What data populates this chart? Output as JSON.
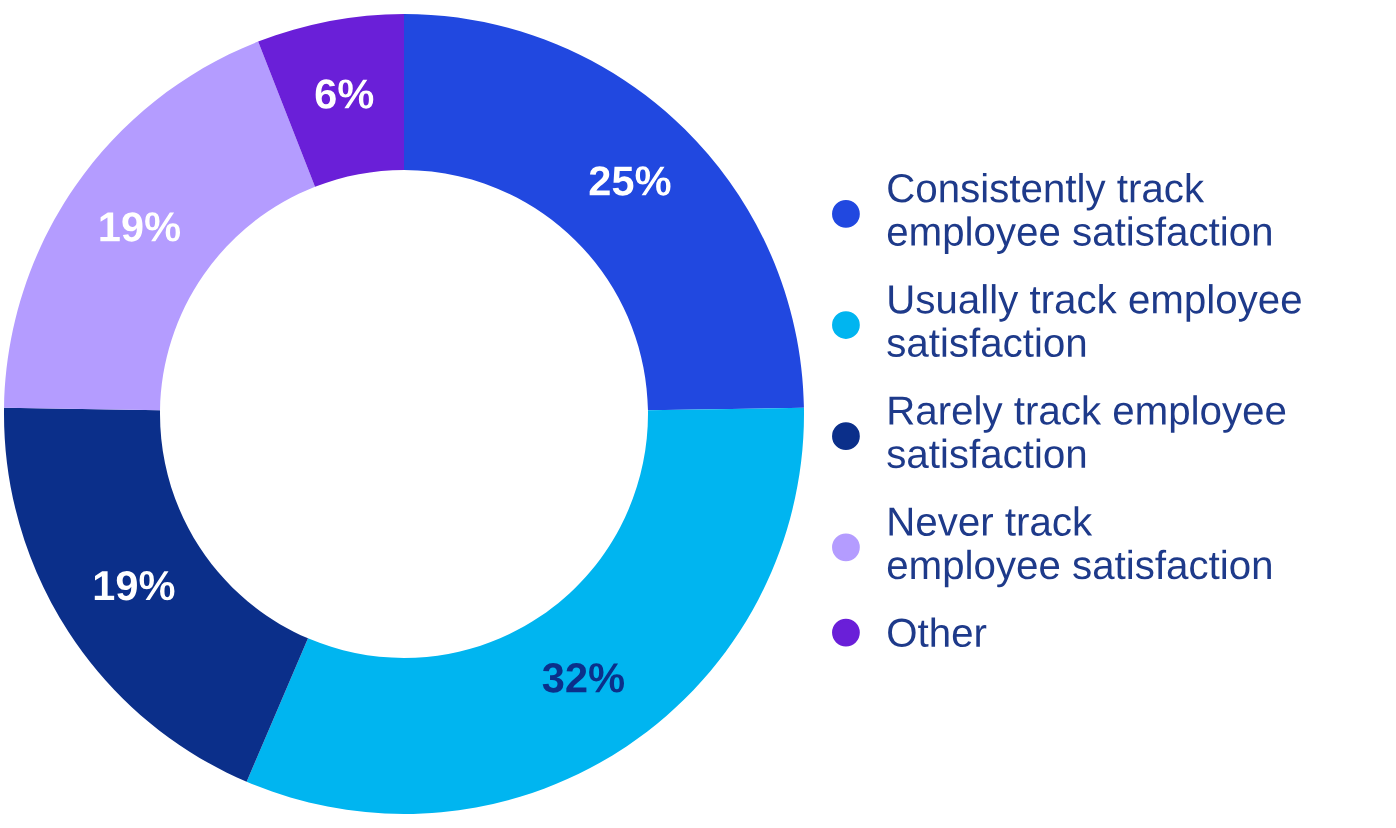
{
  "chart_data": {
    "type": "donut",
    "categories": [
      "Consistently track\nemployee satisfaction",
      "Usually track employee\nsatisfaction",
      "Rarely track employee\nsatisfaction",
      "Never track\nemployee satisfaction",
      "Other"
    ],
    "values": [
      25,
      32,
      19,
      19,
      6
    ],
    "colors": [
      "#2148e0",
      "#00b5f0",
      "#0b2f8a",
      "#b49cff",
      "#6a1fd8"
    ],
    "value_labels": [
      "25%",
      "32%",
      "19%",
      "19%",
      "6%"
    ],
    "legend": "right"
  }
}
